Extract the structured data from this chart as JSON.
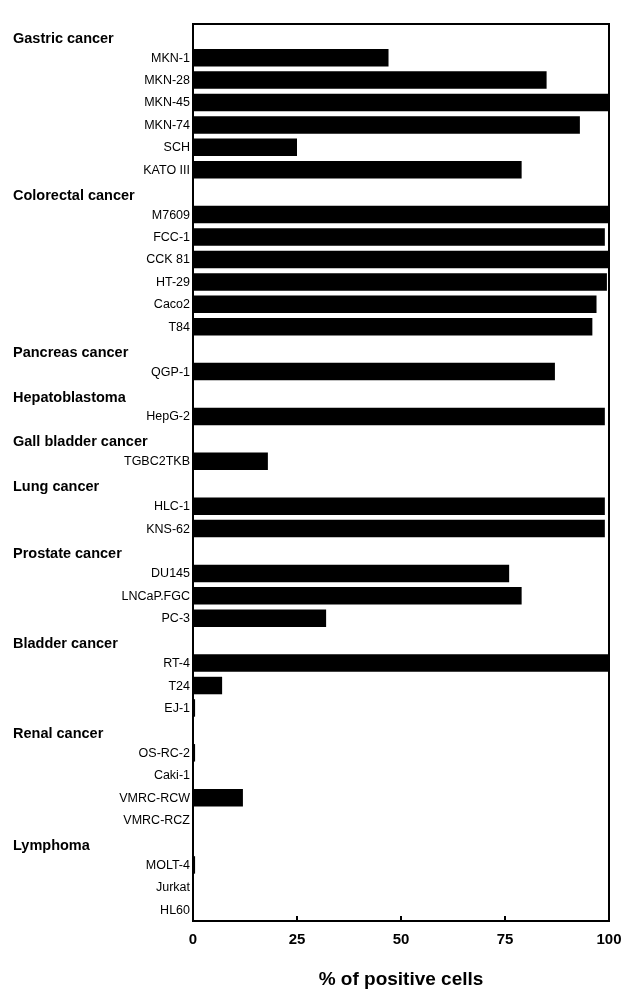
{
  "chart_data": {
    "type": "bar",
    "orientation": "horizontal",
    "xlabel": "% of positive cells",
    "categories": [
      null,
      "MKN-1",
      "MKN-28",
      "MKN-45",
      "MKN-74",
      "SCH",
      "KATO III",
      null,
      "M7609",
      "FCC-1",
      "CCK 81",
      "HT-29",
      "Caco2",
      "T84",
      null,
      "QGP-1",
      null,
      "HepG-2",
      null,
      "TGBC2TKB",
      null,
      "HLC-1",
      "KNS-62",
      null,
      "DU145",
      "LNCaP.FGC",
      "PC-3",
      null,
      "RT-4",
      "T24",
      "EJ-1",
      null,
      "OS-RC-2",
      "Caki-1",
      "VMRC-RCW",
      "VMRC-RCZ",
      null,
      "MOLT-4",
      "Jurkat",
      "HL60"
    ],
    "values": [
      null,
      47,
      85,
      100,
      93,
      25,
      79,
      null,
      100,
      99,
      100,
      99.5,
      97,
      96,
      null,
      87,
      null,
      99,
      null,
      18,
      null,
      99,
      99,
      null,
      76,
      79,
      32,
      null,
      100,
      7,
      0.5,
      null,
      0.5,
      0,
      12,
      0,
      null,
      0.5,
      0,
      0
    ],
    "color": "#000000",
    "xlim": [
      0,
      100
    ],
    "xticks": [
      0,
      25,
      50,
      75,
      100
    ],
    "grid": false,
    "annotations": [
      "Gastric cancer",
      "Colorectal cancer",
      "Pancreas cancer",
      "Hepatoblastoma",
      "Gall bladder cancer",
      "Lung cancer",
      "Prostate cancer",
      "Bladder cancer",
      "Renal cancer",
      "Lymphoma"
    ]
  }
}
